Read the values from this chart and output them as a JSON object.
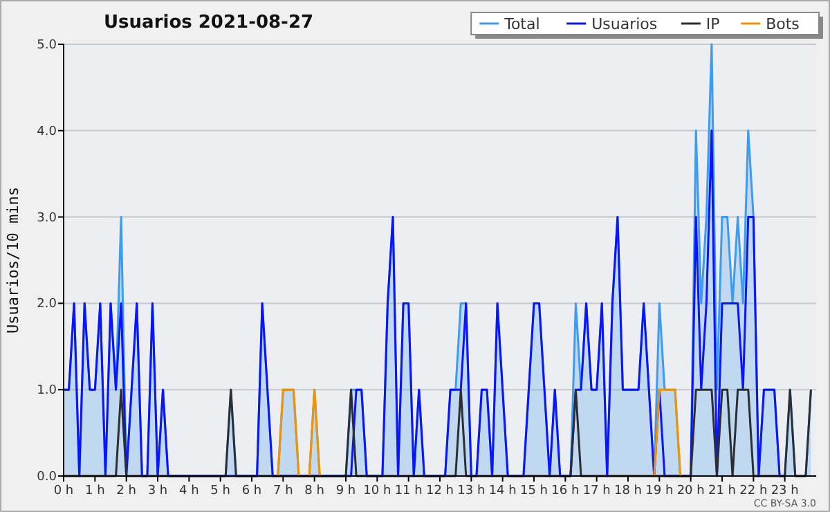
{
  "chart_data": {
    "type": "line",
    "title": "Usuarios  2021-08-27",
    "ylabel": "Usuarios/10 mins",
    "annotations": [
      "CC BY-SA 3.0"
    ],
    "legend": "top right",
    "grid": "y",
    "marker": "none",
    "x": [
      0,
      0.1667,
      0.3333,
      0.5,
      0.6667,
      0.8333,
      1,
      1.1667,
      1.3333,
      1.5,
      1.6667,
      1.8333,
      2,
      2.1667,
      2.3333,
      2.5,
      2.6667,
      2.8333,
      3,
      3.1667,
      3.3333,
      3.5,
      3.6667,
      3.8333,
      4,
      4.1667,
      4.3333,
      4.5,
      4.6667,
      4.8333,
      5,
      5.1667,
      5.3333,
      5.5,
      5.6667,
      5.8333,
      6,
      6.1667,
      6.3333,
      6.5,
      6.6667,
      6.8333,
      7,
      7.1667,
      7.3333,
      7.5,
      7.6667,
      7.8333,
      8,
      8.1667,
      8.3333,
      8.5,
      8.6667,
      8.8333,
      9,
      9.1667,
      9.3333,
      9.5,
      9.6667,
      9.8333,
      10,
      10.1667,
      10.3333,
      10.5,
      10.6667,
      10.8333,
      11,
      11.1667,
      11.3333,
      11.5,
      11.6667,
      11.8333,
      12,
      12.1667,
      12.3333,
      12.5,
      12.6667,
      12.8333,
      13,
      13.1667,
      13.3333,
      13.5,
      13.6667,
      13.8333,
      14,
      14.1667,
      14.3333,
      14.5,
      14.6667,
      14.8333,
      15,
      15.1667,
      15.3333,
      15.5,
      15.6667,
      15.8333,
      16,
      16.1667,
      16.3333,
      16.5,
      16.6667,
      16.8333,
      17,
      17.1667,
      17.3333,
      17.5,
      17.6667,
      17.8333,
      18,
      18.1667,
      18.3333,
      18.5,
      18.6667,
      18.8333,
      19,
      19.1667,
      19.3333,
      19.5,
      19.6667,
      19.8333,
      20,
      20.1667,
      20.3333,
      20.5,
      20.6667,
      20.8333,
      21,
      21.1667,
      21.3333,
      21.5,
      21.6667,
      21.8333,
      22,
      22.1667,
      22.3333,
      22.5,
      22.6667,
      22.8333,
      23,
      23.1667,
      23.3333,
      23.5,
      23.6667,
      23.8333
    ],
    "xlim": [
      0,
      24
    ],
    "xticks": [
      {
        "value": 0,
        "label": "0 h"
      },
      {
        "value": 1,
        "label": "1 h"
      },
      {
        "value": 2,
        "label": "2 h"
      },
      {
        "value": 3,
        "label": "3 h"
      },
      {
        "value": 4,
        "label": "4 h"
      },
      {
        "value": 5,
        "label": "5 h"
      },
      {
        "value": 6,
        "label": "6 h"
      },
      {
        "value": 7,
        "label": "7 h"
      },
      {
        "value": 8,
        "label": "8 h"
      },
      {
        "value": 9,
        "label": "9 h"
      },
      {
        "value": 10,
        "label": "10 h"
      },
      {
        "value": 11,
        "label": "11 h"
      },
      {
        "value": 12,
        "label": "12 h"
      },
      {
        "value": 13,
        "label": "13 h"
      },
      {
        "value": 14,
        "label": "14 h"
      },
      {
        "value": 15,
        "label": "15 h"
      },
      {
        "value": 16,
        "label": "16 h"
      },
      {
        "value": 17,
        "label": "17 h"
      },
      {
        "value": 18,
        "label": "18 h"
      },
      {
        "value": 19,
        "label": "19 h"
      },
      {
        "value": 20,
        "label": "20 h"
      },
      {
        "value": 21,
        "label": "21 h"
      },
      {
        "value": 22,
        "label": "22 h"
      },
      {
        "value": 23,
        "label": "23 h"
      }
    ],
    "ylim": [
      0,
      5
    ],
    "yticks": [
      {
        "value": 0,
        "label": "0.0"
      },
      {
        "value": 1,
        "label": "1.0"
      },
      {
        "value": 2,
        "label": "2.0"
      },
      {
        "value": 3,
        "label": "3.0"
      },
      {
        "value": 4,
        "label": "4.0"
      },
      {
        "value": 5,
        "label": "5.0"
      }
    ],
    "series": [
      {
        "name": "Total",
        "type": "area",
        "color": "#3d9bf0",
        "values": [
          1,
          1,
          2,
          0,
          2,
          1,
          1,
          2,
          0,
          2,
          1,
          3,
          0,
          1,
          2,
          0,
          0,
          2,
          0,
          1,
          0,
          0,
          0,
          0,
          0,
          0,
          0,
          0,
          0,
          0,
          0,
          0,
          1,
          0,
          0,
          0,
          0,
          0,
          2,
          1,
          0,
          0,
          1,
          1,
          1,
          0,
          0,
          0,
          1,
          0,
          0,
          0,
          0,
          0,
          0,
          1,
          1,
          1,
          0,
          0,
          0,
          0,
          2,
          3,
          0,
          2,
          2,
          0,
          1,
          0,
          0,
          0,
          0,
          0,
          1,
          1,
          2,
          2,
          0,
          0,
          1,
          1,
          0,
          2,
          1,
          0,
          0,
          0,
          0,
          1,
          2,
          2,
          1,
          0,
          1,
          0,
          0,
          0,
          2,
          1,
          2,
          1,
          1,
          2,
          0,
          2,
          3,
          1,
          1,
          1,
          1,
          2,
          1,
          0,
          2,
          1,
          1,
          1,
          0,
          0,
          0,
          4,
          2,
          3,
          5,
          1,
          3,
          3,
          2,
          3,
          2,
          4,
          3,
          0,
          1,
          1,
          1,
          0,
          0,
          1,
          0,
          0,
          0,
          1
        ]
      },
      {
        "name": "Usuarios",
        "type": "line",
        "color": "#0a14ff",
        "values": [
          1,
          1,
          2,
          0,
          2,
          1,
          1,
          2,
          0,
          2,
          1,
          2,
          0,
          1,
          2,
          0,
          0,
          2,
          0,
          1,
          0,
          0,
          0,
          0,
          0,
          0,
          0,
          0,
          0,
          0,
          0,
          0,
          0,
          0,
          0,
          0,
          0,
          0,
          2,
          1,
          0,
          0,
          0,
          0,
          0,
          0,
          0,
          0,
          0,
          0,
          0,
          0,
          0,
          0,
          0,
          0,
          1,
          1,
          0,
          0,
          0,
          0,
          2,
          3,
          0,
          2,
          2,
          0,
          1,
          0,
          0,
          0,
          0,
          0,
          1,
          1,
          1,
          2,
          0,
          0,
          1,
          1,
          0,
          2,
          1,
          0,
          0,
          0,
          0,
          1,
          2,
          2,
          1,
          0,
          1,
          0,
          0,
          0,
          1,
          1,
          2,
          1,
          1,
          2,
          0,
          2,
          3,
          1,
          1,
          1,
          1,
          2,
          1,
          0,
          1,
          0,
          0,
          0,
          0,
          0,
          0,
          3,
          1,
          2,
          4,
          0,
          2,
          2,
          2,
          2,
          1,
          3,
          3,
          0,
          1,
          1,
          1,
          0,
          0,
          null,
          null,
          null,
          null,
          null
        ]
      },
      {
        "name": "IP",
        "type": "line",
        "color": "#2b2f33",
        "values": [
          0,
          0,
          0,
          0,
          0,
          0,
          0,
          0,
          0,
          0,
          0,
          1,
          0,
          0,
          0,
          0,
          0,
          0,
          0,
          0,
          0,
          0,
          0,
          0,
          0,
          0,
          0,
          0,
          0,
          0,
          0,
          0,
          1,
          0,
          0,
          0,
          0,
          0,
          0,
          0,
          0,
          0,
          0,
          0,
          0,
          0,
          0,
          0,
          0,
          0,
          0,
          0,
          0,
          0,
          0,
          1,
          0,
          0,
          0,
          0,
          0,
          0,
          0,
          0,
          0,
          0,
          0,
          0,
          0,
          0,
          0,
          0,
          0,
          0,
          0,
          0,
          1,
          0,
          0,
          0,
          0,
          0,
          0,
          0,
          0,
          0,
          0,
          0,
          0,
          0,
          0,
          0,
          0,
          0,
          0,
          0,
          0,
          0,
          1,
          0,
          0,
          0,
          0,
          0,
          0,
          0,
          0,
          0,
          0,
          0,
          0,
          0,
          0,
          0,
          0,
          0,
          0,
          0,
          0,
          0,
          0,
          1,
          1,
          1,
          1,
          0,
          1,
          1,
          0,
          1,
          1,
          1,
          0,
          0,
          0,
          0,
          0,
          0,
          0,
          1,
          0,
          0,
          0,
          1
        ]
      },
      {
        "name": "Bots",
        "type": "line",
        "color": "#f29400",
        "values": [
          null,
          null,
          null,
          null,
          null,
          null,
          null,
          null,
          null,
          null,
          null,
          null,
          null,
          null,
          null,
          null,
          null,
          null,
          null,
          null,
          null,
          null,
          null,
          null,
          null,
          null,
          null,
          null,
          null,
          null,
          null,
          null,
          null,
          null,
          null,
          null,
          null,
          null,
          null,
          null,
          null,
          0,
          1,
          1,
          1,
          0,
          null,
          0,
          1,
          0,
          null,
          null,
          null,
          null,
          null,
          null,
          null,
          null,
          null,
          null,
          null,
          null,
          null,
          null,
          null,
          null,
          null,
          null,
          null,
          null,
          null,
          null,
          null,
          null,
          null,
          null,
          null,
          null,
          null,
          null,
          null,
          null,
          null,
          null,
          null,
          null,
          null,
          null,
          null,
          null,
          null,
          null,
          null,
          null,
          null,
          null,
          null,
          null,
          null,
          null,
          null,
          null,
          null,
          null,
          null,
          null,
          null,
          null,
          null,
          null,
          null,
          null,
          null,
          0,
          1,
          1,
          1,
          1,
          0,
          null,
          null,
          null,
          null,
          null,
          null,
          null,
          null,
          null,
          null,
          null,
          null,
          null,
          null,
          null,
          null,
          null,
          null,
          null,
          null,
          null,
          null,
          null,
          null,
          null
        ]
      }
    ]
  }
}
